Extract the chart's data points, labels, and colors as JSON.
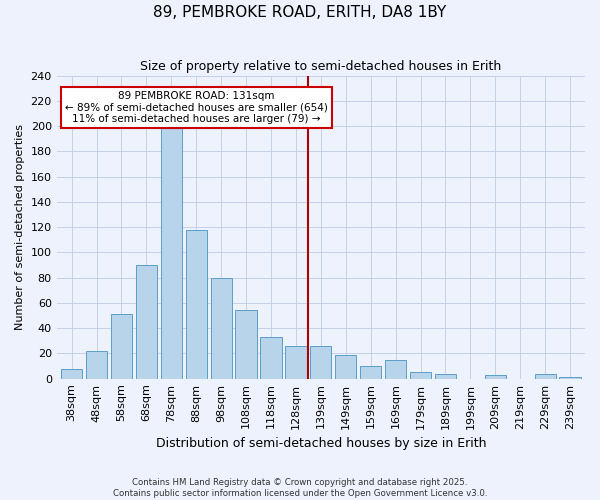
{
  "title": "89, PEMBROKE ROAD, ERITH, DA8 1BY",
  "subtitle": "Size of property relative to semi-detached houses in Erith",
  "xlabel": "Distribution of semi-detached houses by size in Erith",
  "ylabel": "Number of semi-detached properties",
  "bar_labels": [
    "38sqm",
    "48sqm",
    "58sqm",
    "68sqm",
    "78sqm",
    "88sqm",
    "98sqm",
    "108sqm",
    "118sqm",
    "128sqm",
    "139sqm",
    "149sqm",
    "159sqm",
    "169sqm",
    "179sqm",
    "189sqm",
    "199sqm",
    "209sqm",
    "219sqm",
    "229sqm",
    "239sqm"
  ],
  "bar_values": [
    8,
    22,
    51,
    90,
    200,
    118,
    80,
    54,
    33,
    26,
    26,
    19,
    10,
    15,
    5,
    4,
    0,
    3,
    0,
    4,
    1
  ],
  "bar_color": "#b8d4ea",
  "bar_edge_color": "#5a9fc8",
  "vline_color": "#aa0000",
  "annotation_title": "89 PEMBROKE ROAD: 131sqm",
  "annotation_line1": "← 89% of semi-detached houses are smaller (654)",
  "annotation_line2": "11% of semi-detached houses are larger (79) →",
  "annotation_box_color": "#ffffff",
  "annotation_box_edge": "#cc0000",
  "ylim": [
    0,
    240
  ],
  "yticks": [
    0,
    20,
    40,
    60,
    80,
    100,
    120,
    140,
    160,
    180,
    200,
    220,
    240
  ],
  "footnote1": "Contains HM Land Registry data © Crown copyright and database right 2025.",
  "footnote2": "Contains public sector information licensed under the Open Government Licence v3.0.",
  "bg_color": "#eef2fc",
  "grid_color": "#c5cfe8",
  "title_fontsize": 11,
  "subtitle_fontsize": 9,
  "xlabel_fontsize": 9,
  "ylabel_fontsize": 8,
  "tick_fontsize": 8,
  "annot_fontsize": 7.5,
  "footnote_fontsize": 6.2
}
